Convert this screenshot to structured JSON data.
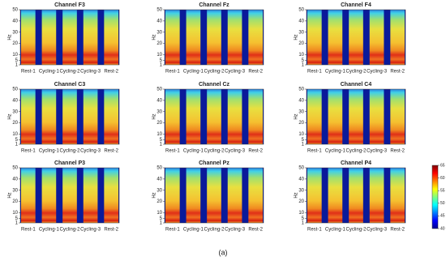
{
  "chart_data": [
    {
      "type": "spectrogram",
      "title": "Channel F3",
      "ylabel": "Hz",
      "categories": [
        "Rest-1",
        "Cycling-1",
        "Cycling-2",
        "Cycling-3",
        "Rest-2"
      ],
      "ylim": [
        1,
        50
      ],
      "yticks": [
        1,
        5,
        10,
        20,
        30,
        40,
        50
      ]
    },
    {
      "type": "spectrogram",
      "title": "Channel Fz",
      "ylabel": "Hz",
      "categories": [
        "Rest-1",
        "Cycling-1",
        "Cycling-2",
        "Cycling-3",
        "Rest-2"
      ],
      "ylim": [
        1,
        50
      ],
      "yticks": [
        1,
        5,
        10,
        20,
        30,
        40,
        50
      ]
    },
    {
      "type": "spectrogram",
      "title": "Channel F4",
      "ylabel": "Hz",
      "categories": [
        "Rest-1",
        "Cycling-1",
        "Cycling-2",
        "Cycling-3",
        "Rest-2"
      ],
      "ylim": [
        1,
        50
      ],
      "yticks": [
        1,
        5,
        10,
        20,
        30,
        40,
        50
      ]
    },
    {
      "type": "spectrogram",
      "title": "Channel C3",
      "ylabel": "Hz",
      "categories": [
        "Rest-1",
        "Cycling-1",
        "Cycling-2",
        "Cycling-3",
        "Rest-2"
      ],
      "ylim": [
        1,
        50
      ],
      "yticks": [
        1,
        5,
        10,
        20,
        30,
        40,
        50
      ]
    },
    {
      "type": "spectrogram",
      "title": "Channel Cz",
      "ylabel": "Hz",
      "categories": [
        "Rest-1",
        "Cycling-1",
        "Cycling-2",
        "Cycling-3",
        "Rest-2"
      ],
      "ylim": [
        1,
        50
      ],
      "yticks": [
        1,
        5,
        10,
        20,
        30,
        40,
        50
      ]
    },
    {
      "type": "spectrogram",
      "title": "Channel C4",
      "ylabel": "Hz",
      "categories": [
        "Rest-1",
        "Cycling-1",
        "Cycling-2",
        "Cycling-3",
        "Rest-2"
      ],
      "ylim": [
        1,
        50
      ],
      "yticks": [
        1,
        5,
        10,
        20,
        30,
        40,
        50
      ]
    },
    {
      "type": "spectrogram",
      "title": "Channel P3",
      "ylabel": "Hz",
      "categories": [
        "Rest-1",
        "Cycling-1",
        "Cycling-2",
        "Cycling-3",
        "Rest-2"
      ],
      "ylim": [
        1,
        50
      ],
      "yticks": [
        1,
        5,
        10,
        20,
        30,
        40,
        50
      ]
    },
    {
      "type": "spectrogram",
      "title": "Channel Pz",
      "ylabel": "Hz",
      "categories": [
        "Rest-1",
        "Cycling-1",
        "Cycling-2",
        "Cycling-3",
        "Rest-2"
      ],
      "ylim": [
        1,
        50
      ],
      "yticks": [
        1,
        5,
        10,
        20,
        30,
        40,
        50
      ]
    },
    {
      "type": "spectrogram",
      "title": "Channel P4",
      "ylabel": "Hz",
      "categories": [
        "Rest-1",
        "Cycling-1",
        "Cycling-2",
        "Cycling-3",
        "Rest-2"
      ],
      "ylim": [
        1,
        50
      ],
      "yticks": [
        1,
        5,
        10,
        20,
        30,
        40,
        50
      ]
    }
  ],
  "colorbar": {
    "lim": [
      40,
      65
    ],
    "ticks": [
      40,
      45,
      50,
      55,
      60,
      65
    ]
  },
  "caption": "(a)"
}
